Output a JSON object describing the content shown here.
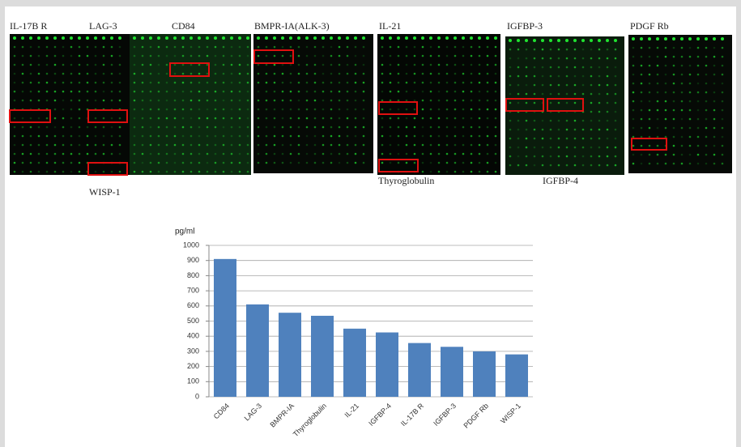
{
  "panel_labels": {
    "top": [
      "IL-17B R",
      "LAG-3",
      "CD84",
      "BMPR-IA(ALK-3)",
      "IL-21",
      "IGFBP-3",
      "PDGF Rb"
    ],
    "bottom": [
      "WISP-1",
      "Thyroglobulin",
      "IGFBP-4"
    ]
  },
  "chart_data": {
    "type": "bar",
    "ylabel": "pg/ml",
    "categories": [
      "CD84",
      "LAG-3",
      "BMPR-IA",
      "Thyroglobulin",
      "IL-21",
      "IGFBP-4",
      "IL-17B R",
      "IGFBP-3",
      "PDGF Rb",
      "WISP-1"
    ],
    "values": [
      910,
      610,
      555,
      535,
      450,
      425,
      355,
      330,
      300,
      280
    ],
    "color": "#4f81bd",
    "ylim": [
      0,
      1000
    ],
    "yticks": [
      0,
      100,
      200,
      300,
      400,
      500,
      600,
      700,
      800,
      900,
      1000
    ],
    "grid": true
  }
}
